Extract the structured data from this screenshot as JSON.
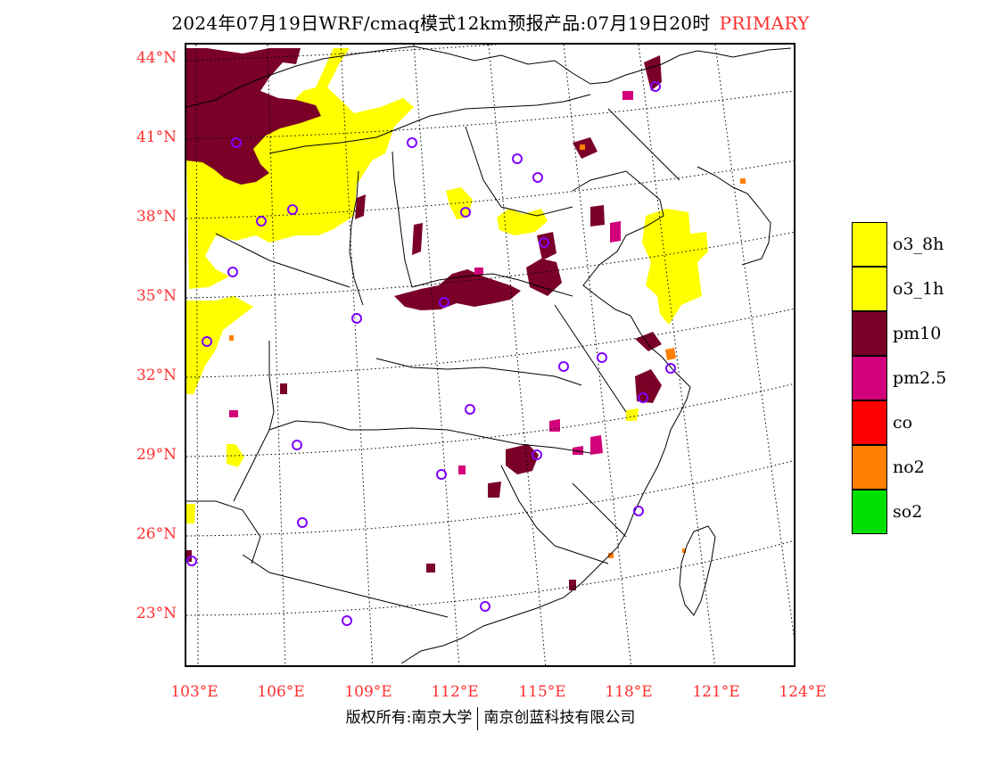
{
  "title": {
    "main": "2024年07月19日WRF/cmaq模式12km预报产品:07月19日20时",
    "tag": "PRIMARY"
  },
  "axes": {
    "lat_labels": [
      "44°N",
      "41°N",
      "38°N",
      "35°N",
      "32°N",
      "29°N",
      "26°N",
      "23°N"
    ],
    "lon_labels": [
      "103°E",
      "106°E",
      "109°E",
      "112°E",
      "115°E",
      "118°E",
      "121°E",
      "124°E"
    ]
  },
  "legend": [
    {
      "label": "o3_8h",
      "color": "#ffff00"
    },
    {
      "label": "o3_1h",
      "color": "#ffff00"
    },
    {
      "label": "pm10",
      "color": "#7a0028"
    },
    {
      "label": "pm2.5",
      "color": "#d2007a"
    },
    {
      "label": "co",
      "color": "#ff0000"
    },
    {
      "label": "no2",
      "color": "#ff8000"
    },
    {
      "label": "so2",
      "color": "#00e000"
    }
  ],
  "footer": {
    "copyright": "版权所有:南京大学",
    "company": "南京创蓝科技有限公司"
  }
}
